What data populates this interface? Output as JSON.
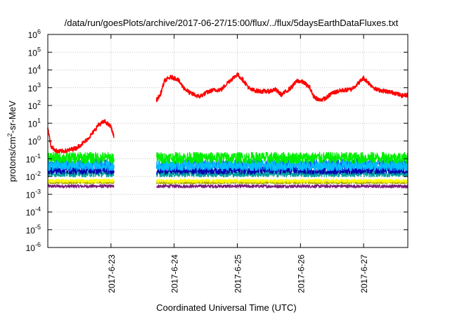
{
  "chart_data": {
    "type": "line",
    "title": "/data/run/goesPlots/archive/2017-06-27/15:00/flux/../flux/5daysEarthDataFluxes.txt",
    "xlabel": "Coordinated Universal Time (UTC)",
    "ylabel_base": "protons/cm",
    "ylabel_sup": "2",
    "ylabel_rest": "-sr-MeV",
    "yscale": "log",
    "ylim_exp": [
      -6,
      6
    ],
    "y_ticks": [
      {
        "base": "10",
        "exp": "-6",
        "e": -6
      },
      {
        "base": "10",
        "exp": "-5",
        "e": -5
      },
      {
        "base": "10",
        "exp": "-4",
        "e": -4
      },
      {
        "base": "10",
        "exp": "-3",
        "e": -3
      },
      {
        "base": "10",
        "exp": "-2",
        "e": -2
      },
      {
        "base": "10",
        "exp": "-1",
        "e": -1
      },
      {
        "base": "10",
        "exp": "0",
        "e": 0
      },
      {
        "base": "10",
        "exp": "1",
        "e": 1
      },
      {
        "base": "10",
        "exp": "2",
        "e": 2
      },
      {
        "base": "10",
        "exp": "3",
        "e": 3
      },
      {
        "base": "10",
        "exp": "4",
        "e": 4
      },
      {
        "base": "10",
        "exp": "5",
        "e": 5
      },
      {
        "base": "10",
        "exp": "6",
        "e": 6
      }
    ],
    "xlim_days": [
      22.0,
      27.7
    ],
    "x_ticks": [
      {
        "label": "2017-6-23",
        "day": 23.0
      },
      {
        "label": "2017-6-24",
        "day": 24.0
      },
      {
        "label": "2017-6-25",
        "day": 25.0
      },
      {
        "label": "2017-6-26",
        "day": 26.0
      },
      {
        "label": "2017-6-27",
        "day": 27.0
      }
    ],
    "grid": true,
    "data_gap_days": [
      23.05,
      23.72
    ],
    "series": [
      {
        "color": "#ff0000",
        "noise": 0.12,
        "points": [
          [
            22.0,
            0.7
          ],
          [
            22.05,
            -0.3
          ],
          [
            22.15,
            -0.6
          ],
          [
            22.3,
            -0.55
          ],
          [
            22.45,
            -0.4
          ],
          [
            22.6,
            0.0
          ],
          [
            22.7,
            0.4
          ],
          [
            22.8,
            0.9
          ],
          [
            22.9,
            1.1
          ],
          [
            23.0,
            0.8
          ],
          [
            23.05,
            0.2
          ],
          [
            23.72,
            2.3
          ],
          [
            23.78,
            2.6
          ],
          [
            23.85,
            3.4
          ],
          [
            23.95,
            3.6
          ],
          [
            24.05,
            3.5
          ],
          [
            24.15,
            3.0
          ],
          [
            24.25,
            2.7
          ],
          [
            24.4,
            2.5
          ],
          [
            24.5,
            2.7
          ],
          [
            24.6,
            2.85
          ],
          [
            24.75,
            2.9
          ],
          [
            24.85,
            3.3
          ],
          [
            25.0,
            3.75
          ],
          [
            25.1,
            3.4
          ],
          [
            25.2,
            2.9
          ],
          [
            25.35,
            2.8
          ],
          [
            25.5,
            2.8
          ],
          [
            25.6,
            2.9
          ],
          [
            25.7,
            2.6
          ],
          [
            25.85,
            3.0
          ],
          [
            25.95,
            3.4
          ],
          [
            26.05,
            3.3
          ],
          [
            26.15,
            3.0
          ],
          [
            26.2,
            2.55
          ],
          [
            26.3,
            2.3
          ],
          [
            26.4,
            2.4
          ],
          [
            26.5,
            2.7
          ],
          [
            26.65,
            2.85
          ],
          [
            26.8,
            2.9
          ],
          [
            26.9,
            3.2
          ],
          [
            27.0,
            3.55
          ],
          [
            27.1,
            3.2
          ],
          [
            27.2,
            2.9
          ],
          [
            27.35,
            2.8
          ],
          [
            27.5,
            2.7
          ],
          [
            27.6,
            2.55
          ],
          [
            27.7,
            2.6
          ]
        ]
      },
      {
        "color": "#00ee00",
        "level": -0.95,
        "noise": 0.32
      },
      {
        "color": "#00bfff",
        "level": -1.4,
        "noise": 0.28
      },
      {
        "color": "#1060ff",
        "level": -1.3,
        "noise": 0.3
      },
      {
        "color": "#0000b0",
        "level": -1.65,
        "noise": 0.22
      },
      {
        "color": "#00a0a0",
        "level": -1.85,
        "noise": 0.18
      },
      {
        "color": "#ffff00",
        "level": -2.25,
        "noise": 0.1
      },
      {
        "color": "#aaaa00",
        "level": -2.35,
        "noise": 0.07
      },
      {
        "color": "#7a1a7a",
        "level": -2.55,
        "noise": 0.09
      }
    ]
  }
}
